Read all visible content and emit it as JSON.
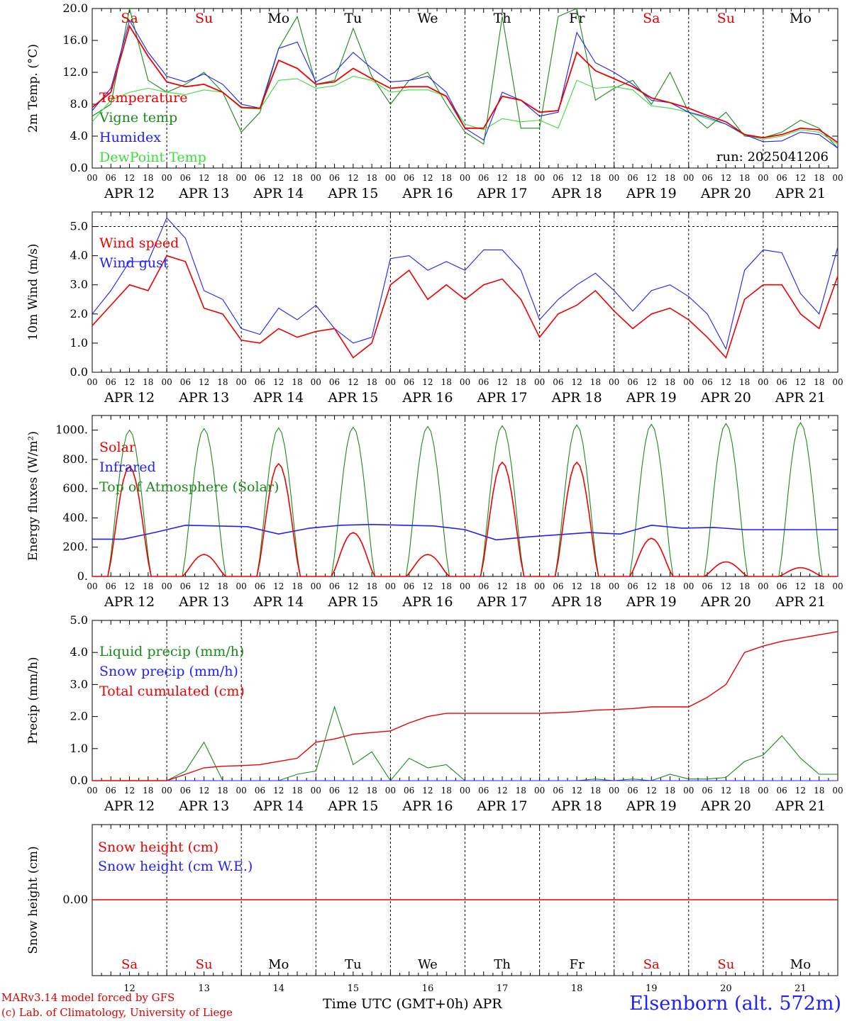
{
  "days": {
    "weekdays": [
      "Sa",
      "Su",
      "Mo",
      "Tu",
      "We",
      "Th",
      "Fr",
      "Sa",
      "Su",
      "Mo"
    ],
    "weekend_flags": [
      true,
      true,
      false,
      false,
      false,
      false,
      false,
      true,
      true,
      false
    ],
    "dates": [
      "APR 12",
      "APR 13",
      "APR 14",
      "APR 15",
      "APR 16",
      "APR 17",
      "APR 18",
      "APR 19",
      "APR 20",
      "APR 21"
    ],
    "day_numbers": [
      "12",
      "13",
      "14",
      "15",
      "16",
      "17",
      "18",
      "19",
      "20",
      "21"
    ],
    "hour_ticks": [
      "00",
      "06",
      "12",
      "18"
    ],
    "last_tick": "00"
  },
  "colors": {
    "red": "#ee0000",
    "green": "#1a8a1a",
    "blue": "#1f1fff",
    "lightgreen": "#3cdc3c",
    "weekend": "#e00000"
  },
  "chart_data": [
    {
      "type": "line",
      "ylabel": "2m Temp. (oC)",
      "ylim": [
        0,
        20
      ],
      "yticks": [
        "0.0",
        "4.0",
        "8.0",
        "12.0",
        "16.0",
        "20.0"
      ],
      "run_label": "run: 2025041206",
      "x_hours": [
        0,
        6,
        12,
        18,
        24,
        30,
        36,
        42,
        48,
        54,
        60,
        66,
        72,
        78,
        84,
        90,
        96,
        102,
        108,
        114,
        120,
        126,
        132,
        138,
        144,
        150,
        156,
        162,
        168,
        174,
        180,
        186,
        192,
        198,
        204,
        210,
        216,
        222,
        228,
        234,
        240
      ],
      "series": [
        {
          "name": "Temperature",
          "color": "red",
          "values": [
            7.6,
            9.5,
            17.8,
            14,
            10.8,
            10.2,
            10.5,
            9.5,
            7.6,
            7.5,
            13.5,
            12.5,
            10.5,
            10.8,
            12.5,
            11.2,
            10,
            10.2,
            10.2,
            9,
            5,
            5,
            9,
            8.5,
            7,
            7.2,
            14.5,
            12.2,
            11.2,
            10.2,
            8.8,
            8.2,
            7.5,
            6.6,
            5.8,
            4.2,
            3.8,
            4.2,
            5,
            4.8,
            3.2
          ]
        },
        {
          "name": "Vigne temp",
          "color": "green",
          "values": [
            6.5,
            8,
            20,
            11,
            9.5,
            10.5,
            12,
            9.5,
            4.5,
            7,
            15,
            19,
            10.5,
            11,
            17.5,
            11.5,
            8,
            11,
            12,
            8,
            4.5,
            3,
            19,
            5,
            5,
            19,
            20,
            8.5,
            10,
            11,
            8,
            12,
            7,
            5,
            7,
            4,
            3.8,
            4.5,
            6,
            5,
            2.5
          ]
        },
        {
          "name": "Humidex",
          "color": "blue",
          "values": [
            7.2,
            10,
            18.5,
            14.5,
            11.5,
            10.8,
            11.8,
            10.5,
            8,
            7.5,
            15,
            15.8,
            10.8,
            12,
            14.5,
            12.5,
            10.8,
            11,
            11.5,
            9.5,
            5,
            3.5,
            9.5,
            8.5,
            6.5,
            7,
            17,
            13.2,
            12,
            10.5,
            8.5,
            8.2,
            7,
            6.4,
            5.5,
            4.2,
            3.3,
            3.4,
            4.5,
            4.2,
            2.5
          ]
        },
        {
          "name": "DewPoint Temp",
          "color": "lightgreen",
          "values": [
            5.8,
            8.5,
            9.5,
            10,
            9.5,
            9.2,
            9.8,
            9.5,
            7.5,
            7.4,
            11,
            11.2,
            10,
            10.3,
            11.5,
            11,
            9.5,
            9.8,
            9.8,
            9,
            5.5,
            4.8,
            6.2,
            5.8,
            6,
            5,
            11,
            10,
            10.2,
            9.8,
            7.8,
            7.5,
            7,
            6.2,
            5.5,
            4.1,
            3.6,
            4,
            4.8,
            4.5,
            3
          ]
        }
      ],
      "reference_line": null
    },
    {
      "type": "line",
      "ylabel": "10m Wind (m/s)",
      "ylim": [
        0,
        5.5
      ],
      "yticks": [
        "0.0",
        "1.0",
        "2.0",
        "3.0",
        "4.0",
        "5.0"
      ],
      "x_hours": [
        0,
        6,
        12,
        18,
        24,
        30,
        36,
        42,
        48,
        54,
        60,
        66,
        72,
        78,
        84,
        90,
        96,
        102,
        108,
        114,
        120,
        126,
        132,
        138,
        144,
        150,
        156,
        162,
        168,
        174,
        180,
        186,
        192,
        198,
        204,
        210,
        216,
        222,
        228,
        234,
        240
      ],
      "series": [
        {
          "name": "Wind speed",
          "color": "red",
          "values": [
            1.6,
            2.3,
            3,
            2.8,
            4,
            3.8,
            2.2,
            2,
            1.1,
            1,
            1.5,
            1.2,
            1.4,
            1.5,
            0.5,
            1,
            3,
            3.5,
            2.5,
            3,
            2.5,
            3,
            3.2,
            2.5,
            1.2,
            2,
            2.3,
            2.8,
            2.1,
            1.5,
            2,
            2.2,
            1.8,
            1.2,
            0.5,
            2.5,
            3,
            3,
            2,
            1.5,
            3.3
          ]
        },
        {
          "name": "Wind gust",
          "color": "blue",
          "values": [
            2,
            2.8,
            3.8,
            3.8,
            5.3,
            4.6,
            2.8,
            2.5,
            1.5,
            1.3,
            2.2,
            1.8,
            2.3,
            1.5,
            1,
            1.2,
            3.9,
            4,
            3.5,
            3.8,
            3.5,
            4.2,
            4.2,
            3.5,
            1.8,
            2.5,
            3,
            3.4,
            2.8,
            2.1,
            2.8,
            3,
            2.6,
            2,
            0.8,
            3.5,
            4.2,
            4.1,
            2.7,
            2,
            4.3
          ]
        }
      ],
      "reference_line": 5.0
    },
    {
      "type": "line",
      "ylabel": "Energy fluxes (W/m2)",
      "ylim": [
        0,
        1100
      ],
      "yticks": [
        "0.",
        "200.",
        "400.",
        "600.",
        "800.",
        "1000."
      ],
      "series": [
        {
          "name": "Solar",
          "color": "red",
          "daily_peak_values": [
            750,
            150,
            770,
            300,
            150,
            780,
            780,
            260,
            100,
            60
          ]
        },
        {
          "name": "Infrared",
          "color": "blue",
          "values": [
            255,
            255,
            300,
            350,
            345,
            340,
            290,
            330,
            350,
            355,
            350,
            345,
            320,
            250,
            270,
            285,
            300,
            290,
            350,
            330,
            335,
            320,
            320,
            320,
            320
          ]
        },
        {
          "name": "Top of Atmosphere (Solar)",
          "color": "green",
          "daily_peak_values": [
            1000,
            1010,
            1015,
            1020,
            1025,
            1030,
            1035,
            1040,
            1045,
            1050
          ]
        }
      ],
      "reference_line": null
    },
    {
      "type": "line",
      "ylabel": "Precip (mm/h)",
      "ylim": [
        0,
        5
      ],
      "yticks": [
        "0.0",
        "1.0",
        "2.0",
        "3.0",
        "4.0",
        "5.0"
      ],
      "x_hours": [
        0,
        6,
        12,
        18,
        24,
        30,
        36,
        42,
        48,
        54,
        60,
        66,
        72,
        78,
        84,
        90,
        96,
        102,
        108,
        114,
        120,
        126,
        132,
        138,
        144,
        150,
        156,
        162,
        168,
        174,
        180,
        186,
        192,
        198,
        204,
        210,
        216,
        222,
        228,
        234,
        240
      ],
      "series": [
        {
          "name": "Liquid precip (mm/h)",
          "color": "green",
          "values": [
            0,
            0,
            0,
            0,
            0,
            0.3,
            1.2,
            0,
            0,
            0,
            0,
            0.2,
            0.3,
            2.3,
            0.5,
            0.9,
            0,
            0.7,
            0.4,
            0.5,
            0,
            0,
            0,
            0,
            0,
            0,
            0,
            0.05,
            0,
            0.05,
            0,
            0.2,
            0.05,
            0.05,
            0.1,
            0.6,
            0.8,
            1.4,
            0.7,
            0.2,
            0.2
          ]
        },
        {
          "name": "Snow precip (mm/h)",
          "color": "blue",
          "values": [
            0,
            0,
            0,
            0,
            0,
            0,
            0,
            0,
            0,
            0,
            0,
            0,
            0,
            0,
            0,
            0,
            0,
            0,
            0,
            0,
            0,
            0,
            0,
            0,
            0,
            0,
            0,
            0,
            0,
            0,
            0,
            0,
            0,
            0,
            0,
            0,
            0,
            0,
            0,
            0,
            0
          ]
        },
        {
          "name": "Total cumulated (cm)",
          "color": "red",
          "values": [
            0,
            0,
            0,
            0,
            0,
            0.2,
            0.4,
            0.45,
            0.47,
            0.5,
            0.6,
            0.7,
            1.2,
            1.3,
            1.45,
            1.5,
            1.55,
            1.8,
            2,
            2.1,
            2.1,
            2.1,
            2.1,
            2.1,
            2.1,
            2.12,
            2.15,
            2.2,
            2.22,
            2.25,
            2.3,
            2.3,
            2.3,
            2.6,
            3,
            4,
            4.2,
            4.35,
            4.45,
            4.55,
            4.65
          ]
        }
      ],
      "reference_line": null
    },
    {
      "type": "line",
      "ylabel": "Snow height (cm)",
      "ytick": "0.00",
      "series": [
        {
          "name": "Snow height (cm)",
          "color": "red",
          "values": [
            0,
            0
          ]
        },
        {
          "name": "Snow height (cm W.E.)",
          "color": "blue",
          "values": [
            0,
            0
          ]
        }
      ],
      "reference_line": null
    }
  ],
  "footer": {
    "time_label": "Time UTC (GMT+0h) APR",
    "station": "Elsenborn (alt. 572m)",
    "credit1": "MARv3.14 model forced by GFS",
    "credit2": "(c) Lab. of Climatology, University of Liege"
  }
}
